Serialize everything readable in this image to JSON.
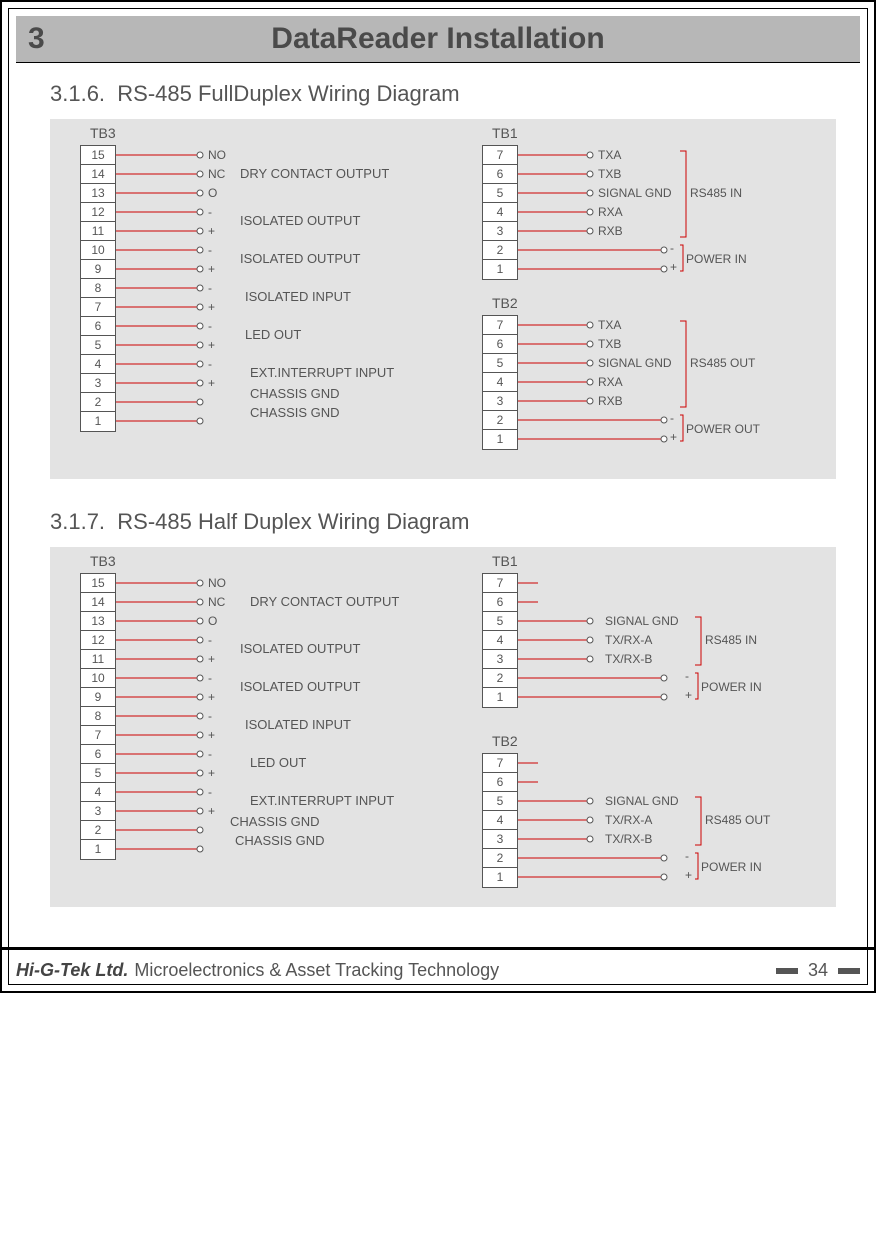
{
  "header": {
    "chapter_num": "3",
    "chapter_title": "DataReader Installation"
  },
  "sections": {
    "s1": {
      "num": "3.1.6.",
      "title": "RS-485 FullDuplex Wiring Diagram"
    },
    "s2": {
      "num": "3.1.7.",
      "title": "RS-485 Half Duplex Wiring Diagram"
    }
  },
  "tb3": {
    "label": "TB3",
    "pins": [
      "15",
      "14",
      "13",
      "12",
      "11",
      "10",
      "9",
      "8",
      "7",
      "6",
      "5",
      "4",
      "3",
      "2",
      "1"
    ],
    "row_labels": [
      "NO",
      "NC",
      "O",
      "-",
      "+",
      "-",
      "+",
      "-",
      "+",
      "-",
      "+",
      "-",
      "+",
      "",
      ""
    ],
    "group_labels": {
      "dry": "DRY CONTACT OUTPUT",
      "iso_out1": "ISOLATED OUTPUT",
      "iso_out2": "ISOLATED OUTPUT",
      "iso_in": "ISOLATED INPUT",
      "led": "LED OUT",
      "ext": "EXT.INTERRUPT INPUT",
      "cgnd1": "CHASSIS GND",
      "cgnd2": "CHASSIS GND"
    }
  },
  "tb_full": {
    "tb1_label": "TB1",
    "tb2_label": "TB2",
    "pins": [
      "7",
      "6",
      "5",
      "4",
      "3",
      "2",
      "1"
    ],
    "signals": {
      "txa": "TXA",
      "txb": "TXB",
      "sgnd": "SIGNAL GND",
      "rxa": "RXA",
      "rxb": "RXB"
    },
    "rs485in": "RS485 IN",
    "rs485out": "RS485 OUT",
    "pwrin": "POWER IN",
    "pwrout": "POWER OUT",
    "minus": "-",
    "plus": "+"
  },
  "tb_half": {
    "tb1_label": "TB1",
    "tb2_label": "TB2",
    "pins": [
      "7",
      "6",
      "5",
      "4",
      "3",
      "2",
      "1"
    ],
    "signals": {
      "sgnd": "SIGNAL GND",
      "txrxa": "TX/RX-A",
      "txrxb": "TX/RX-B"
    },
    "rs485in": "RS485 IN",
    "rs485out": "RS485 OUT",
    "pwrin": "POWER IN",
    "minus": "-",
    "plus": "+"
  },
  "footer": {
    "company": "Hi-G-Tek Ltd.",
    "tag": "Microelectronics & Asset Tracking Technology",
    "page": "34"
  },
  "colors": {
    "wire": "#cc0000",
    "text": "#555555",
    "box": "#ffffff",
    "diagram_bg": "#e3e3e3",
    "header_bg": "#b7b7b7"
  }
}
